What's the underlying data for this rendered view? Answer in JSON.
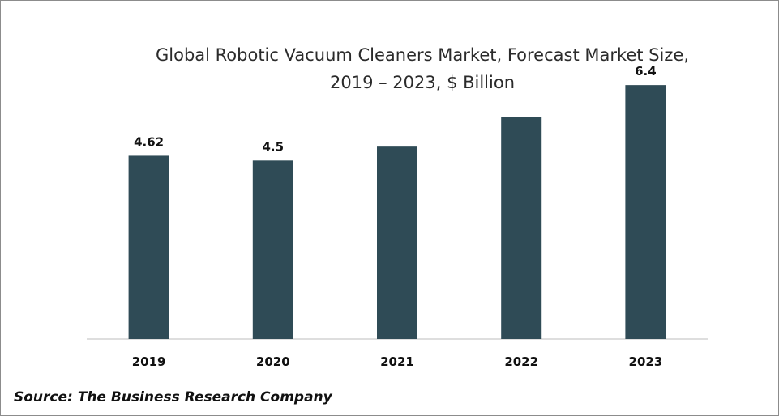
{
  "chart_data": {
    "type": "bar",
    "title_lines": [
      "Global Robotic Vacuum Cleaners Market, Forecast Market Size,",
      "2019 – 2023, $ Billion"
    ],
    "categories": [
      "2019",
      "2020",
      "2021",
      "2022",
      "2023"
    ],
    "values": [
      4.62,
      4.5,
      4.85,
      5.6,
      6.4
    ],
    "data_labels": [
      "4.62",
      "4.5",
      "",
      "",
      "6.4"
    ],
    "ylim": [
      0,
      7.3
    ],
    "grid": false,
    "bar_color": "#2f4b56"
  },
  "source": "Source: The Business Research Company"
}
